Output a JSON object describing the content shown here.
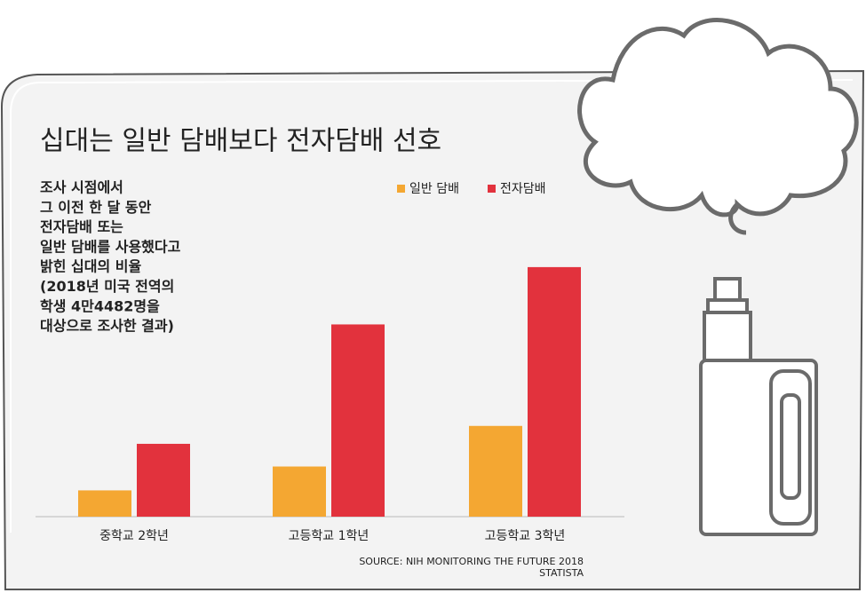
{
  "chart_data": {
    "type": "bar",
    "title": "십대는 일반 담배보다 전자담배 선호",
    "description": [
      "조사 시점에서",
      "그 이전 한 달 동안",
      "전자담배 또는",
      "일반 담배를 사용했다고",
      "밝힌 십대의 비율",
      "(2018년 미국 전역의",
      "학생 4만4482명을",
      "대상으로 조사한 결과)"
    ],
    "categories": [
      "중학교 2학년",
      "고등학교 1학년",
      "고등학교 3학년"
    ],
    "series": [
      {
        "name": "일반 담배",
        "color": "#f4a732",
        "values": [
          2.2,
          4.2,
          7.6
        ]
      },
      {
        "name": "전자담배",
        "color": "#e2323d",
        "values": [
          6.1,
          16.1,
          20.9
        ]
      }
    ],
    "source": [
      "SOURCE: NIH MONITORING THE FUTURE 2018",
      "STATISTA"
    ]
  }
}
